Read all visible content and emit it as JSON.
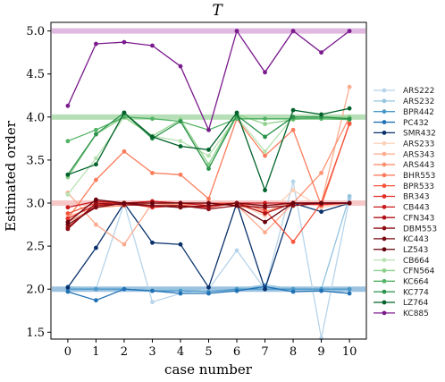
{
  "chart_data": {
    "type": "line",
    "title": "T",
    "xlabel": "case number",
    "ylabel": "Estimated order",
    "xlim": [
      -0.6,
      10.6
    ],
    "ylim": [
      1.42,
      5.1
    ],
    "xticks": [
      0,
      1,
      2,
      3,
      4,
      5,
      6,
      7,
      8,
      9,
      10
    ],
    "yticks": [
      1.5,
      2.0,
      2.5,
      3.0,
      3.5,
      4.0,
      4.5,
      5.0
    ],
    "ytick_labels": [
      "1.5",
      "2.0",
      "2.5",
      "3.0",
      "3.5",
      "4.0",
      "4.5",
      "5.0"
    ],
    "grid": false,
    "legend_placement": "right",
    "reference_lines": [
      {
        "y": 2.0,
        "color": "#4a90c8"
      },
      {
        "y": 3.0,
        "color": "#ef9a9a"
      },
      {
        "y": 4.0,
        "color": "#7cc47c"
      },
      {
        "y": 5.0,
        "color": "#c77dc7"
      }
    ],
    "x": [
      0,
      1,
      2,
      3,
      4,
      5,
      6,
      7,
      8,
      9,
      10
    ],
    "series": [
      {
        "name": "ARS222",
        "color": "#b7d4ea",
        "values": [
          2.0,
          2.0,
          3.0,
          1.85,
          1.95,
          2.0,
          2.45,
          2.0,
          3.25,
          1.43,
          3.05
        ]
      },
      {
        "name": "ARS232",
        "color": "#94c4df",
        "values": [
          2.03,
          2.0,
          2.0,
          2.0,
          2.0,
          1.97,
          2.0,
          2.05,
          2.0,
          2.0,
          3.08
        ]
      },
      {
        "name": "BPR442",
        "color": "#4a98c9",
        "values": [
          2.0,
          2.0,
          2.0,
          1.98,
          1.98,
          1.97,
          2.0,
          2.0,
          2.0,
          2.0,
          2.0
        ]
      },
      {
        "name": "PC432",
        "color": "#2171b5",
        "values": [
          1.97,
          1.87,
          2.0,
          1.98,
          1.95,
          1.95,
          1.98,
          2.03,
          1.97,
          1.98,
          1.95
        ]
      },
      {
        "name": "SMR432",
        "color": "#08306b",
        "values": [
          2.02,
          2.48,
          3.0,
          2.54,
          2.52,
          2.02,
          3.0,
          2.0,
          3.0,
          2.9,
          3.0
        ]
      },
      {
        "name": "ARS233",
        "color": "#fdd0b8",
        "values": [
          2.85,
          2.95,
          3.0,
          3.0,
          3.0,
          2.97,
          3.0,
          2.85,
          3.15,
          2.95,
          3.0
        ]
      },
      {
        "name": "ARS343",
        "color": "#fcab8f",
        "values": [
          3.12,
          2.75,
          2.52,
          3.0,
          2.98,
          3.0,
          2.98,
          2.66,
          3.0,
          3.0,
          4.35
        ]
      },
      {
        "name": "ARS443",
        "color": "#fc9272",
        "values": [
          2.78,
          2.95,
          2.97,
          3.0,
          2.97,
          3.0,
          2.97,
          2.9,
          3.0,
          3.35,
          4.0
        ]
      },
      {
        "name": "BHR553",
        "color": "#fb7b5b",
        "values": [
          2.82,
          3.27,
          3.6,
          3.35,
          3.33,
          3.05,
          3.98,
          3.55,
          3.85,
          2.97,
          3.93
        ]
      },
      {
        "name": "BPR533",
        "color": "#f6553c",
        "values": [
          2.88,
          3.0,
          3.0,
          3.02,
          3.0,
          3.0,
          3.0,
          2.92,
          2.55,
          3.0,
          3.92
        ]
      },
      {
        "name": "BR343",
        "color": "#e32f27",
        "values": [
          2.82,
          2.98,
          3.0,
          2.95,
          2.97,
          2.95,
          3.0,
          2.97,
          3.0,
          2.98,
          3.0
        ]
      },
      {
        "name": "CB443",
        "color": "#ca181d",
        "values": [
          2.95,
          3.02,
          3.0,
          3.02,
          3.0,
          2.97,
          3.0,
          3.0,
          3.0,
          3.0,
          3.0
        ]
      },
      {
        "name": "CFN343",
        "color": "#b11218",
        "values": [
          2.72,
          2.97,
          3.0,
          2.97,
          2.95,
          2.97,
          3.0,
          2.88,
          3.0,
          3.0,
          3.0
        ]
      },
      {
        "name": "DBM553",
        "color": "#8e0d15",
        "values": [
          2.7,
          3.0,
          2.98,
          2.97,
          2.97,
          2.93,
          2.97,
          2.95,
          2.97,
          3.0,
          3.0
        ]
      },
      {
        "name": "KC443",
        "color": "#7a0a12",
        "values": [
          2.75,
          2.95,
          3.0,
          2.97,
          2.95,
          2.97,
          3.0,
          2.97,
          3.0,
          3.0,
          3.0
        ]
      },
      {
        "name": "LZ543",
        "color": "#67000d",
        "values": [
          2.78,
          3.04,
          3.0,
          3.0,
          3.0,
          3.0,
          2.97,
          2.78,
          3.0,
          3.0,
          3.0
        ]
      },
      {
        "name": "CB664",
        "color": "#b7e2b1",
        "values": [
          3.1,
          3.52,
          4.0,
          3.78,
          3.72,
          3.55,
          4.0,
          3.6,
          4.0,
          4.0,
          4.0
        ]
      },
      {
        "name": "CFN564",
        "color": "#8ed08b",
        "values": [
          3.3,
          3.8,
          4.0,
          3.78,
          3.97,
          3.45,
          4.03,
          3.92,
          3.97,
          4.0,
          4.0
        ]
      },
      {
        "name": "KC664",
        "color": "#52b365",
        "values": [
          3.72,
          3.85,
          4.0,
          3.98,
          3.95,
          3.85,
          3.98,
          3.98,
          3.98,
          3.98,
          3.97
        ]
      },
      {
        "name": "KC774",
        "color": "#2a924a",
        "values": [
          3.33,
          3.8,
          4.05,
          3.75,
          3.95,
          3.4,
          4.02,
          3.77,
          4.0,
          4.0,
          3.98
        ]
      },
      {
        "name": "LZ764",
        "color": "#00612a",
        "values": [
          3.33,
          3.45,
          4.05,
          3.77,
          3.66,
          3.62,
          4.05,
          3.15,
          4.08,
          4.03,
          4.1
        ]
      },
      {
        "name": "KC885",
        "color": "#7a1a8c",
        "values": [
          4.13,
          4.85,
          4.87,
          4.83,
          4.59,
          3.85,
          5.0,
          4.52,
          5.0,
          4.75,
          5.0
        ]
      }
    ]
  }
}
